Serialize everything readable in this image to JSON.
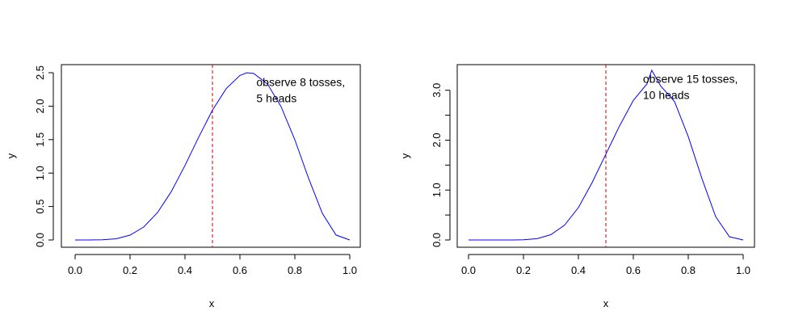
{
  "colors": {
    "curve": "#0000ff",
    "reference_line": "#cc0000",
    "axis": "#000000",
    "background": "#ffffff"
  },
  "chart_data": [
    {
      "type": "line",
      "panel": "left",
      "title": "",
      "xlabel": "x",
      "ylabel": "y",
      "xlim": [
        0,
        1
      ],
      "ylim": [
        0,
        2.5
      ],
      "x_ticks": [
        "0.0",
        "0.2",
        "0.4",
        "0.6",
        "0.8",
        "1.0"
      ],
      "y_ticks": [
        "0.0",
        "0.5",
        "1.0",
        "1.5",
        "2.0",
        "2.5"
      ],
      "grid": false,
      "reference_line": {
        "x": 0.5,
        "style": "dashed"
      },
      "annotation": {
        "lines": [
          "observe 8 tosses,",
          " 5 heads"
        ],
        "x": 0.66,
        "y": 2.3
      },
      "series": [
        {
          "x": [
            0.0,
            0.05,
            0.1,
            0.15,
            0.2,
            0.25,
            0.3,
            0.35,
            0.4,
            0.45,
            0.5,
            0.55,
            0.6,
            0.625,
            0.65,
            0.7,
            0.75,
            0.8,
            0.85,
            0.9,
            0.95,
            1.0
          ],
          "values": [
            0.0,
            0.0,
            0.002,
            0.018,
            0.072,
            0.194,
            0.409,
            0.722,
            1.113,
            1.538,
            1.94,
            2.262,
            2.459,
            2.5,
            2.489,
            2.333,
            1.991,
            1.497,
            0.921,
            0.398,
            0.074,
            0.0
          ]
        }
      ]
    },
    {
      "type": "line",
      "panel": "right",
      "title": "",
      "xlabel": "x",
      "ylabel": "y",
      "xlim": [
        0,
        1
      ],
      "ylim": [
        0,
        3.4
      ],
      "x_ticks": [
        "0.0",
        "0.2",
        "0.4",
        "0.6",
        "0.8",
        "1.0"
      ],
      "y_ticks": [
        "0.0",
        "1.0",
        "2.0",
        "3.0"
      ],
      "grid": false,
      "reference_line": {
        "x": 0.5,
        "style": "dashed"
      },
      "annotation": {
        "lines": [
          "observe 15 tosses,",
          " 10 heads"
        ],
        "x": 0.635,
        "y": 3.15
      },
      "series": [
        {
          "x": [
            0.0,
            0.05,
            0.1,
            0.15,
            0.2,
            0.25,
            0.3,
            0.35,
            0.4,
            0.45,
            0.5,
            0.55,
            0.6,
            0.65,
            0.667,
            0.7,
            0.75,
            0.8,
            0.85,
            0.9,
            0.95,
            1.0
          ],
          "values": [
            0.0,
            0.0,
            0.0,
            0.0,
            0.004,
            0.026,
            0.107,
            0.3,
            0.649,
            1.149,
            1.72,
            2.287,
            2.796,
            3.129,
            3.4,
            3.083,
            2.774,
            2.071,
            1.228,
            0.465,
            0.064,
            0.0
          ]
        }
      ]
    }
  ]
}
